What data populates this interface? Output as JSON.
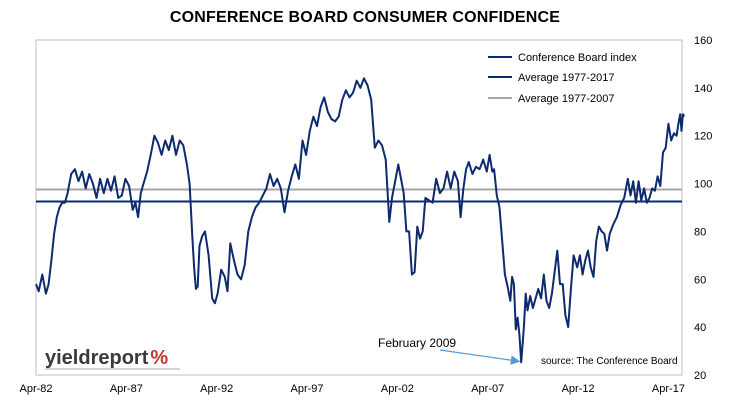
{
  "chart_data": {
    "type": "line",
    "title": "CONFERENCE BOARD CONSUMER CONFIDENCE",
    "x_tick_labels": [
      "Apr-82",
      "Apr-87",
      "Apr-92",
      "Apr-97",
      "Apr-02",
      "Apr-07",
      "Apr-12",
      "Apr-17"
    ],
    "y_ticks": [
      20,
      40,
      60,
      80,
      100,
      120,
      140,
      160
    ],
    "ylim": [
      20,
      160
    ],
    "x_start": "1982-04",
    "x_end": "2018-01",
    "y_axis_side": "right",
    "grid": false,
    "legend_position": "top-right",
    "series": [
      {
        "name": "Conference Board index",
        "color": "#0d2a6e",
        "points": [
          [
            1982.25,
            58
          ],
          [
            1982.4,
            55
          ],
          [
            1982.6,
            62
          ],
          [
            1982.8,
            54
          ],
          [
            1982.95,
            58
          ],
          [
            1983.1,
            68
          ],
          [
            1983.25,
            79
          ],
          [
            1983.4,
            86
          ],
          [
            1983.55,
            90
          ],
          [
            1983.7,
            92
          ],
          [
            1983.85,
            92
          ],
          [
            1984.0,
            96
          ],
          [
            1984.2,
            104
          ],
          [
            1984.4,
            106
          ],
          [
            1984.6,
            101
          ],
          [
            1984.8,
            105
          ],
          [
            1985.0,
            98
          ],
          [
            1985.2,
            104
          ],
          [
            1985.4,
            100
          ],
          [
            1985.6,
            94
          ],
          [
            1985.8,
            102
          ],
          [
            1986.0,
            96
          ],
          [
            1986.2,
            102
          ],
          [
            1986.4,
            97
          ],
          [
            1986.6,
            103
          ],
          [
            1986.8,
            94
          ],
          [
            1987.0,
            95
          ],
          [
            1987.2,
            102
          ],
          [
            1987.4,
            99
          ],
          [
            1987.6,
            89
          ],
          [
            1987.75,
            92
          ],
          [
            1987.9,
            86
          ],
          [
            1988.05,
            96
          ],
          [
            1988.2,
            100
          ],
          [
            1988.4,
            105
          ],
          [
            1988.6,
            112
          ],
          [
            1988.8,
            120
          ],
          [
            1989.0,
            117
          ],
          [
            1989.2,
            112
          ],
          [
            1989.4,
            118
          ],
          [
            1989.6,
            114
          ],
          [
            1989.8,
            120
          ],
          [
            1990.0,
            112
          ],
          [
            1990.2,
            118
          ],
          [
            1990.4,
            116
          ],
          [
            1990.6,
            108
          ],
          [
            1990.75,
            100
          ],
          [
            1990.9,
            78
          ],
          [
            1991.0,
            65
          ],
          [
            1991.1,
            56
          ],
          [
            1991.2,
            57
          ],
          [
            1991.3,
            74
          ],
          [
            1991.45,
            78
          ],
          [
            1991.6,
            80
          ],
          [
            1991.8,
            70
          ],
          [
            1992.0,
            52
          ],
          [
            1992.15,
            50
          ],
          [
            1992.3,
            54
          ],
          [
            1992.5,
            64
          ],
          [
            1992.7,
            61
          ],
          [
            1992.85,
            55
          ],
          [
            1993.0,
            75
          ],
          [
            1993.2,
            68
          ],
          [
            1993.4,
            62
          ],
          [
            1993.6,
            60
          ],
          [
            1993.8,
            66
          ],
          [
            1994.0,
            80
          ],
          [
            1994.2,
            86
          ],
          [
            1994.4,
            90
          ],
          [
            1994.6,
            92
          ],
          [
            1994.8,
            95
          ],
          [
            1995.0,
            98
          ],
          [
            1995.2,
            104
          ],
          [
            1995.4,
            99
          ],
          [
            1995.6,
            102
          ],
          [
            1995.8,
            98
          ],
          [
            1996.0,
            88
          ],
          [
            1996.2,
            97
          ],
          [
            1996.4,
            103
          ],
          [
            1996.6,
            108
          ],
          [
            1996.8,
            102
          ],
          [
            1997.0,
            118
          ],
          [
            1997.2,
            112
          ],
          [
            1997.4,
            122
          ],
          [
            1997.6,
            128
          ],
          [
            1997.8,
            124
          ],
          [
            1998.0,
            132
          ],
          [
            1998.2,
            136
          ],
          [
            1998.4,
            130
          ],
          [
            1998.6,
            127
          ],
          [
            1998.8,
            126
          ],
          [
            1999.0,
            128
          ],
          [
            1999.2,
            135
          ],
          [
            1999.4,
            139
          ],
          [
            1999.6,
            136
          ],
          [
            1999.8,
            138
          ],
          [
            2000.0,
            143
          ],
          [
            2000.2,
            140
          ],
          [
            2000.4,
            144
          ],
          [
            2000.6,
            141
          ],
          [
            2000.8,
            135
          ],
          [
            2001.0,
            115
          ],
          [
            2001.2,
            118
          ],
          [
            2001.4,
            116
          ],
          [
            2001.6,
            110
          ],
          [
            2001.8,
            84
          ],
          [
            2001.95,
            94
          ],
          [
            2002.1,
            100
          ],
          [
            2002.3,
            108
          ],
          [
            2002.45,
            102
          ],
          [
            2002.6,
            96
          ],
          [
            2002.75,
            80
          ],
          [
            2002.9,
            80
          ],
          [
            2003.05,
            62
          ],
          [
            2003.2,
            63
          ],
          [
            2003.35,
            82
          ],
          [
            2003.5,
            77
          ],
          [
            2003.65,
            80
          ],
          [
            2003.8,
            94
          ],
          [
            2004.0,
            93
          ],
          [
            2004.2,
            92
          ],
          [
            2004.4,
            102
          ],
          [
            2004.6,
            96
          ],
          [
            2004.8,
            98
          ],
          [
            2005.0,
            105
          ],
          [
            2005.2,
            98
          ],
          [
            2005.4,
            105
          ],
          [
            2005.6,
            101
          ],
          [
            2005.75,
            86
          ],
          [
            2005.9,
            98
          ],
          [
            2006.05,
            106
          ],
          [
            2006.2,
            109
          ],
          [
            2006.4,
            104
          ],
          [
            2006.6,
            107
          ],
          [
            2006.8,
            106
          ],
          [
            2007.0,
            110
          ],
          [
            2007.2,
            105
          ],
          [
            2007.35,
            112
          ],
          [
            2007.5,
            105
          ],
          [
            2007.6,
            106
          ],
          [
            2007.75,
            95
          ],
          [
            2007.9,
            90
          ],
          [
            2008.05,
            76
          ],
          [
            2008.2,
            62
          ],
          [
            2008.35,
            57
          ],
          [
            2008.5,
            51
          ],
          [
            2008.6,
            61
          ],
          [
            2008.7,
            58
          ],
          [
            2008.8,
            39
          ],
          [
            2008.9,
            44
          ],
          [
            2009.0,
            37
          ],
          [
            2009.1,
            25.3
          ],
          [
            2009.25,
            40
          ],
          [
            2009.35,
            54
          ],
          [
            2009.45,
            47
          ],
          [
            2009.6,
            53
          ],
          [
            2009.75,
            48
          ],
          [
            2009.9,
            52
          ],
          [
            2010.05,
            56
          ],
          [
            2010.2,
            52
          ],
          [
            2010.35,
            62
          ],
          [
            2010.5,
            51
          ],
          [
            2010.65,
            48
          ],
          [
            2010.8,
            54
          ],
          [
            2010.95,
            63
          ],
          [
            2011.1,
            72
          ],
          [
            2011.25,
            58
          ],
          [
            2011.4,
            58
          ],
          [
            2011.55,
            45
          ],
          [
            2011.7,
            40
          ],
          [
            2011.85,
            56
          ],
          [
            2012.0,
            70
          ],
          [
            2012.2,
            65
          ],
          [
            2012.35,
            70
          ],
          [
            2012.5,
            62
          ],
          [
            2012.65,
            68
          ],
          [
            2012.8,
            72
          ],
          [
            2012.95,
            65
          ],
          [
            2013.1,
            61
          ],
          [
            2013.25,
            76
          ],
          [
            2013.4,
            82
          ],
          [
            2013.55,
            80
          ],
          [
            2013.7,
            79
          ],
          [
            2013.85,
            72
          ],
          [
            2014.0,
            79
          ],
          [
            2014.2,
            83
          ],
          [
            2014.4,
            86
          ],
          [
            2014.6,
            91
          ],
          [
            2014.8,
            94
          ],
          [
            2015.0,
            102
          ],
          [
            2015.15,
            95
          ],
          [
            2015.3,
            101
          ],
          [
            2015.45,
            92
          ],
          [
            2015.6,
            101
          ],
          [
            2015.75,
            93
          ],
          [
            2015.9,
            98
          ],
          [
            2016.05,
            92
          ],
          [
            2016.2,
            94
          ],
          [
            2016.35,
            98
          ],
          [
            2016.5,
            97
          ],
          [
            2016.65,
            103
          ],
          [
            2016.8,
            99
          ],
          [
            2016.95,
            113
          ],
          [
            2017.1,
            115
          ],
          [
            2017.25,
            125
          ],
          [
            2017.4,
            118
          ],
          [
            2017.55,
            121
          ],
          [
            2017.7,
            120
          ],
          [
            2017.8,
            125
          ],
          [
            2017.9,
            129
          ],
          [
            2017.97,
            122
          ],
          [
            2018.05,
            129
          ],
          [
            2018.12,
            128
          ]
        ]
      },
      {
        "name": "Average 1977-2017",
        "color": "#0d2a6e",
        "value": 92.5
      },
      {
        "name": "Average 1977-2007",
        "color": "#a6a6a6",
        "value": 97.5
      }
    ],
    "annotation": {
      "text": "February 2009",
      "x": 2009.1,
      "y": 25.3,
      "arrow_color": "#5b9bd5"
    },
    "source": "source: The Conference Board"
  },
  "logo": {
    "main": "yieldreport",
    "symbol": "%"
  }
}
